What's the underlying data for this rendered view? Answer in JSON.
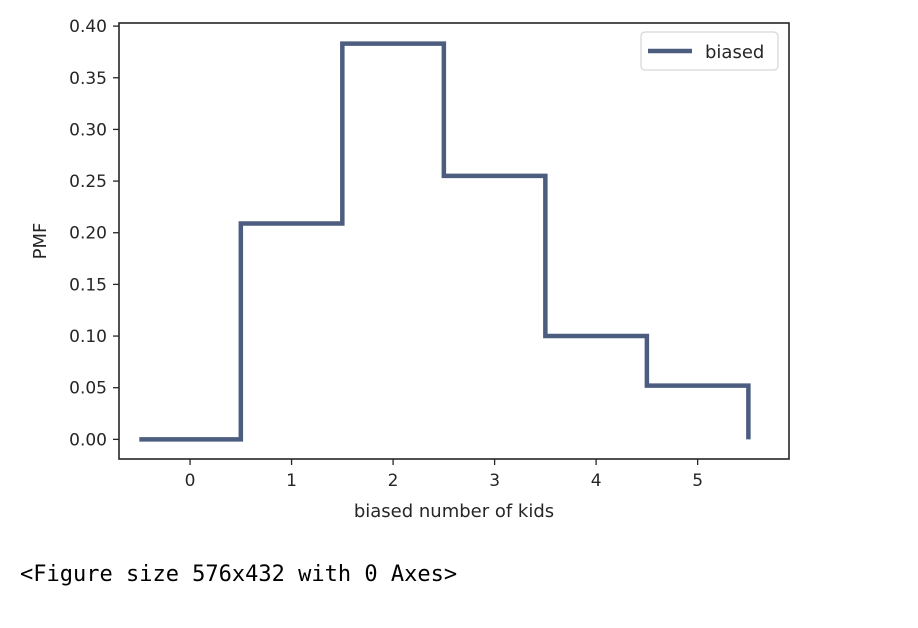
{
  "chart_data": {
    "type": "line",
    "drawstyle": "steps-mid",
    "xlabel": "biased number of kids",
    "ylabel": "PMF",
    "xlim": [
      -0.7,
      5.9
    ],
    "ylim": [
      -0.019,
      0.403
    ],
    "xticks": [
      0,
      1,
      2,
      3,
      4,
      5
    ],
    "yticks": [
      0.0,
      0.05,
      0.1,
      0.15,
      0.2,
      0.25,
      0.3,
      0.35,
      0.4
    ],
    "ytick_labels": [
      "0.00",
      "0.05",
      "0.10",
      "0.15",
      "0.20",
      "0.25",
      "0.30",
      "0.35",
      "0.40"
    ],
    "legend_position": "top-right",
    "grid": false,
    "series": [
      {
        "name": "biased",
        "color": "#4c5d80",
        "x": [
          0,
          1,
          2,
          3,
          4,
          5
        ],
        "y": [
          0.0,
          0.209,
          0.383,
          0.255,
          0.1,
          0.052
        ]
      }
    ]
  },
  "caption": "<Figure size 576x432 with 0 Axes>"
}
